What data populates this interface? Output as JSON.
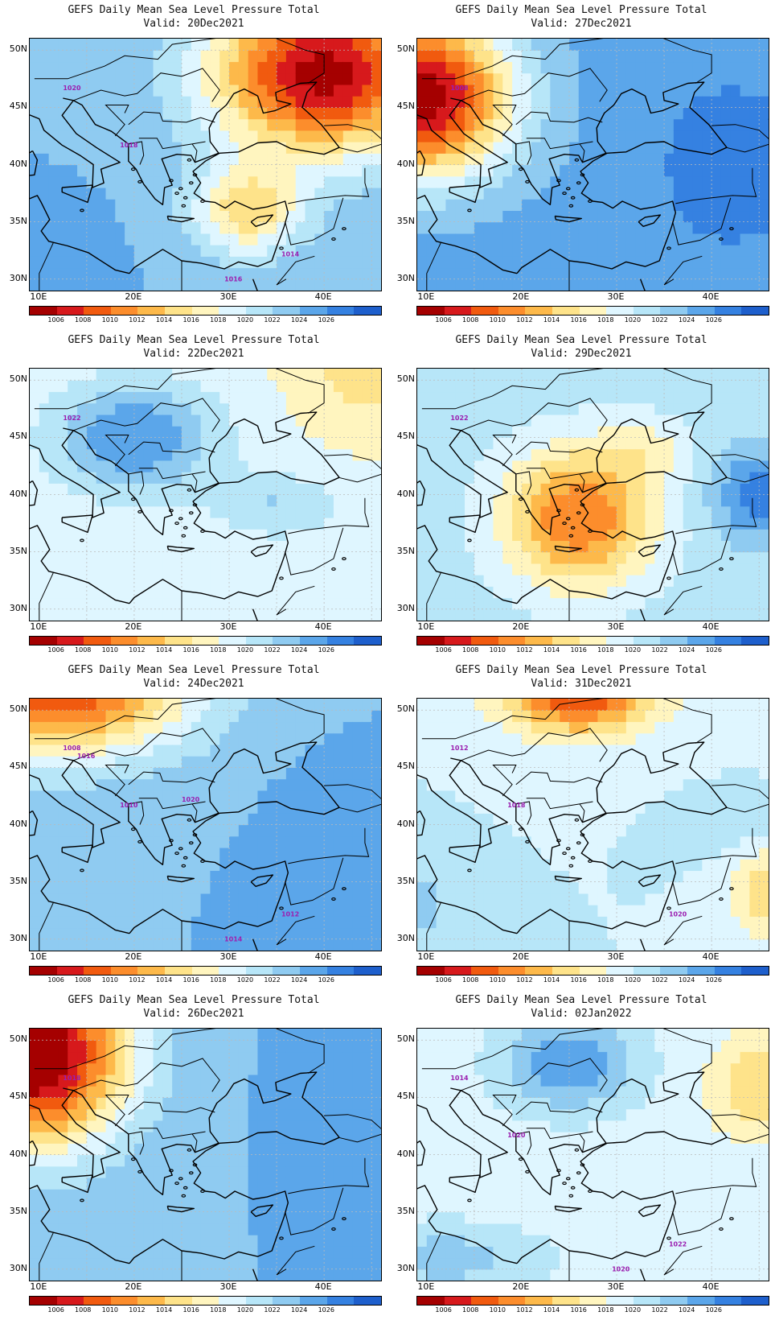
{
  "title_line": "GEFS Daily Mean Sea Level Pressure Total",
  "panels": [
    {
      "valid": "Valid: 20Dec2021",
      "scenario": "low_ne",
      "labels": [
        "1020",
        "1018",
        "1014",
        "1016"
      ]
    },
    {
      "valid": "Valid: 27Dec2021",
      "scenario": "low_nw",
      "labels": [
        "1008"
      ]
    },
    {
      "valid": "Valid: 22Dec2021",
      "scenario": "high_balkan",
      "labels": [
        "1022"
      ]
    },
    {
      "valid": "Valid: 29Dec2021",
      "scenario": "low_aegean",
      "labels": [
        "1022"
      ]
    },
    {
      "valid": "Valid: 24Dec2021",
      "scenario": "low_nw_weak",
      "labels": [
        "1008",
        "1010",
        "1012",
        "1014",
        "1016",
        "1020"
      ]
    },
    {
      "valid": "Valid: 31Dec2021",
      "scenario": "low_north",
      "labels": [
        "1012",
        "1018",
        "1020"
      ]
    },
    {
      "valid": "Valid: 26Dec2021",
      "scenario": "low_far_nw",
      "labels": [
        "1018"
      ]
    },
    {
      "valid": "Valid: 02Jan2022",
      "scenario": "high_north",
      "labels": [
        "1014",
        "1020",
        "1022",
        "1020"
      ]
    }
  ],
  "y_ticks": [
    "50N",
    "45N",
    "40N",
    "35N",
    "30N"
  ],
  "x_ticks": [
    "10E",
    "20E",
    "30E",
    "40E"
  ],
  "colorbar": {
    "labels": [
      "1006",
      "1008",
      "1010",
      "1012",
      "1014",
      "1016",
      "1018",
      "1020",
      "1022",
      "1024",
      "1026"
    ],
    "colors": [
      "#a50000",
      "#d7191c",
      "#f15a0f",
      "#fc8d2c",
      "#fdb94a",
      "#fee38a",
      "#fff5bf",
      "#dff6ff",
      "#b7e6f8",
      "#8fcbf1",
      "#5ba6ea",
      "#3581e1",
      "#1e5fcc"
    ]
  }
}
